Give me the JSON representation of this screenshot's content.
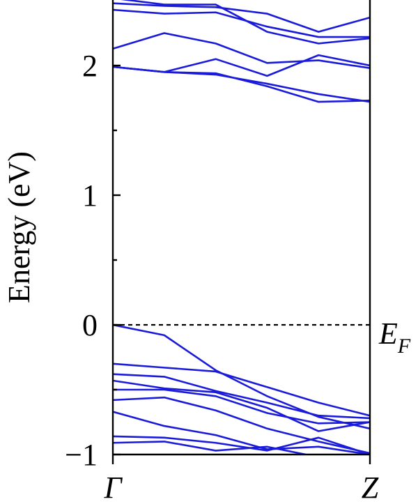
{
  "chart_data": {
    "type": "line",
    "title": "",
    "ylabel": "Energy (eV)",
    "xlabel": "",
    "ylim": [
      -1,
      2.5
    ],
    "x_ticks": [
      {
        "x": 0,
        "label": "Γ"
      },
      {
        "x": 1,
        "label": "Z"
      }
    ],
    "y_ticks": [
      -1,
      0,
      1,
      2
    ],
    "y_tick_labels": [
      "−1",
      "0",
      "1",
      "2"
    ],
    "y_minor_ticks": [
      -0.5,
      0.5,
      1.5
    ],
    "fermi_level": {
      "y": 0,
      "label_main": "E",
      "label_sub": "F"
    },
    "line_color": "#1a1adb",
    "x": [
      0,
      0.2,
      0.4,
      0.6,
      0.8,
      1.0
    ],
    "series": [
      {
        "values": [
          2.48,
          2.46,
          2.45,
          2.4,
          2.26,
          2.37
        ]
      },
      {
        "values": [
          2.43,
          2.4,
          2.41,
          2.3,
          2.22,
          2.22
        ]
      },
      {
        "values": [
          2.52,
          2.47,
          2.47,
          2.26,
          2.17,
          2.21
        ]
      },
      {
        "values": [
          2.13,
          2.25,
          2.17,
          2.02,
          2.04,
          1.98
        ]
      },
      {
        "values": [
          1.99,
          1.95,
          2.05,
          1.92,
          2.08,
          2.0
        ]
      },
      {
        "values": [
          1.99,
          1.95,
          1.94,
          1.84,
          1.72,
          1.73
        ]
      },
      {
        "values": [
          1.99,
          1.95,
          1.93,
          1.86,
          1.78,
          1.72
        ]
      },
      {
        "values": [
          0.0,
          -0.08,
          -0.35,
          -0.55,
          -0.71,
          -0.8
        ]
      },
      {
        "values": [
          -0.3,
          -0.33,
          -0.36,
          -0.48,
          -0.6,
          -0.7
        ]
      },
      {
        "values": [
          -0.38,
          -0.4,
          -0.51,
          -0.6,
          -0.7,
          -0.72
        ]
      },
      {
        "values": [
          -0.43,
          -0.49,
          -0.52,
          -0.64,
          -0.82,
          -0.75
        ]
      },
      {
        "values": [
          -0.5,
          -0.5,
          -0.55,
          -0.68,
          -0.76,
          -0.75
        ]
      },
      {
        "values": [
          -0.58,
          -0.56,
          -0.66,
          -0.8,
          -0.9,
          -0.99
        ]
      },
      {
        "values": [
          -0.67,
          -0.78,
          -0.85,
          -0.96,
          -0.94,
          -1.0
        ]
      },
      {
        "values": [
          -0.86,
          -0.87,
          -0.91,
          -0.97,
          -0.87,
          -1.0
        ]
      },
      {
        "values": [
          -0.91,
          -0.9,
          -0.97,
          -0.94,
          -1.02,
          -1.05
        ]
      }
    ]
  }
}
